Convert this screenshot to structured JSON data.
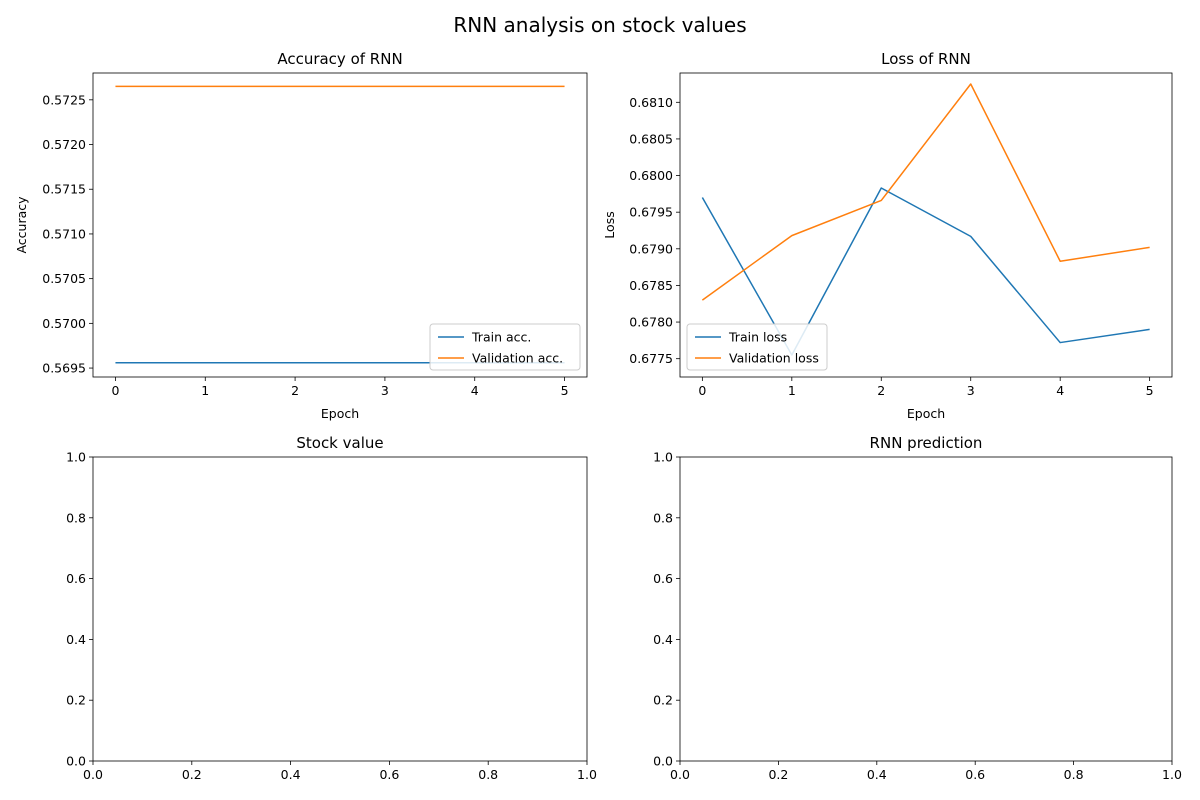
{
  "figure": {
    "suptitle": "RNN analysis on stock values"
  },
  "colors": {
    "train": "#1f77b4",
    "validation": "#ff7f0e",
    "axes": "#000000",
    "legend_border": "#cccccc"
  },
  "chart_data": [
    {
      "id": "accuracy",
      "type": "line",
      "title": "Accuracy of RNN",
      "xlabel": "Epoch",
      "ylabel": "Accuracy",
      "xlim": [
        -0.25,
        5.25
      ],
      "ylim": [
        0.5694,
        0.5728
      ],
      "xticks": [
        0,
        1,
        2,
        3,
        4,
        5
      ],
      "yticks": [
        0.5695,
        0.57,
        0.5705,
        0.571,
        0.5715,
        0.572,
        0.5725
      ],
      "ytick_labels": [
        "0.5695",
        "0.5700",
        "0.5705",
        "0.5710",
        "0.5715",
        "0.5720",
        "0.5725"
      ],
      "x": [
        0,
        1,
        2,
        3,
        4,
        5
      ],
      "series": [
        {
          "name": "Train acc.",
          "color_key": "train",
          "values": [
            0.56956,
            0.56956,
            0.56956,
            0.56956,
            0.56956,
            0.56956
          ]
        },
        {
          "name": "Validation acc.",
          "color_key": "validation",
          "values": [
            0.57265,
            0.57265,
            0.57265,
            0.57265,
            0.57265,
            0.57265
          ]
        }
      ],
      "legend": "lower-right",
      "grid": false
    },
    {
      "id": "loss",
      "type": "line",
      "title": "Loss of RNN",
      "xlabel": "Epoch",
      "ylabel": "Loss",
      "xlim": [
        -0.25,
        5.25
      ],
      "ylim": [
        0.67725,
        0.6814
      ],
      "xticks": [
        0,
        1,
        2,
        3,
        4,
        5
      ],
      "yticks": [
        0.6775,
        0.678,
        0.6785,
        0.679,
        0.6795,
        0.68,
        0.6805,
        0.681
      ],
      "ytick_labels": [
        "0.6775",
        "0.6780",
        "0.6785",
        "0.6790",
        "0.6795",
        "0.6800",
        "0.6805",
        "0.6810"
      ],
      "x": [
        0,
        1,
        2,
        3,
        4,
        5
      ],
      "series": [
        {
          "name": "Train loss",
          "color_key": "train",
          "values": [
            0.6797,
            0.67755,
            0.67983,
            0.67917,
            0.67772,
            0.6779
          ]
        },
        {
          "name": "Validation loss",
          "color_key": "validation",
          "values": [
            0.6783,
            0.67918,
            0.67966,
            0.68125,
            0.67883,
            0.67902
          ]
        }
      ],
      "legend": "lower-left",
      "grid": false
    },
    {
      "id": "stock",
      "type": "line",
      "title": "Stock value",
      "xlim": [
        0,
        1
      ],
      "ylim": [
        0,
        1
      ],
      "xticks": [
        0,
        0.2,
        0.4,
        0.6,
        0.8,
        1.0
      ],
      "xtick_labels": [
        "0.0",
        "0.2",
        "0.4",
        "0.6",
        "0.8",
        "1.0"
      ],
      "yticks": [
        0,
        0.2,
        0.4,
        0.6,
        0.8,
        1.0
      ],
      "ytick_labels": [
        "0.0",
        "0.2",
        "0.4",
        "0.6",
        "0.8",
        "1.0"
      ],
      "series": []
    },
    {
      "id": "prediction",
      "type": "line",
      "title": "RNN prediction",
      "xlim": [
        0,
        1
      ],
      "ylim": [
        0,
        1
      ],
      "xticks": [
        0,
        0.2,
        0.4,
        0.6,
        0.8,
        1.0
      ],
      "xtick_labels": [
        "0.0",
        "0.2",
        "0.4",
        "0.6",
        "0.8",
        "1.0"
      ],
      "yticks": [
        0,
        0.2,
        0.4,
        0.6,
        0.8,
        1.0
      ],
      "ytick_labels": [
        "0.0",
        "0.2",
        "0.4",
        "0.6",
        "0.8",
        "1.0"
      ],
      "series": []
    }
  ]
}
